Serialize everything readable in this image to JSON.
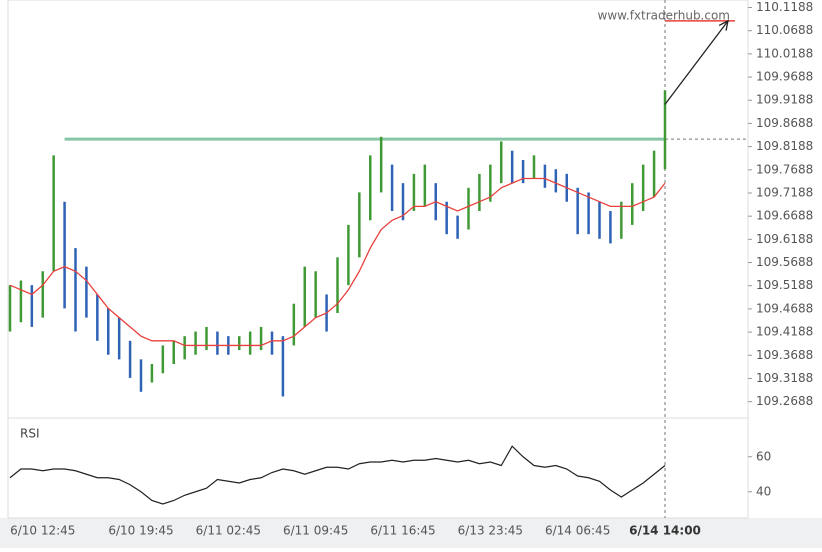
{
  "chart_data": [
    {
      "type": "hilo",
      "watermark": "www.fxtraderhub.com",
      "categories": [
        null,
        null,
        null,
        "6/10 12:45",
        null,
        null,
        null,
        null,
        null,
        null,
        null,
        null,
        "6/10 19:45",
        null,
        null,
        null,
        null,
        null,
        null,
        null,
        "6/11 02:45",
        null,
        null,
        null,
        null,
        null,
        null,
        null,
        "6/11 09:45",
        null,
        null,
        null,
        null,
        null,
        null,
        null,
        "6/11 16:45",
        null,
        null,
        null,
        null,
        null,
        null,
        null,
        "6/13 23:45",
        null,
        null,
        null,
        null,
        null,
        null,
        null,
        "6/14 06:45",
        null,
        null,
        null,
        null,
        null,
        null,
        null,
        "6/14 14:00"
      ],
      "high": [
        109.52,
        109.53,
        109.52,
        109.55,
        109.8,
        109.7,
        109.6,
        109.56,
        109.5,
        109.47,
        109.45,
        109.4,
        109.36,
        109.35,
        109.39,
        109.4,
        109.41,
        109.42,
        109.43,
        109.42,
        109.41,
        109.41,
        109.42,
        109.43,
        109.42,
        109.41,
        109.48,
        109.56,
        109.55,
        109.5,
        109.58,
        109.65,
        109.72,
        109.8,
        109.84,
        109.78,
        109.74,
        109.76,
        109.78,
        109.74,
        109.7,
        109.67,
        109.73,
        109.76,
        109.78,
        109.83,
        109.81,
        109.79,
        109.8,
        109.78,
        109.77,
        109.76,
        109.73,
        109.72,
        109.7,
        109.68,
        109.7,
        109.74,
        109.78,
        109.81,
        109.94
      ],
      "low": [
        109.42,
        109.44,
        109.43,
        109.45,
        109.55,
        109.47,
        109.42,
        109.45,
        109.4,
        109.37,
        109.36,
        109.32,
        109.29,
        109.31,
        109.33,
        109.35,
        109.36,
        109.37,
        109.38,
        109.37,
        109.37,
        109.38,
        109.37,
        109.38,
        109.37,
        109.28,
        109.39,
        109.43,
        109.45,
        109.42,
        109.46,
        109.52,
        109.58,
        109.66,
        109.72,
        109.68,
        109.66,
        109.68,
        109.69,
        109.66,
        109.63,
        109.62,
        109.64,
        109.68,
        109.7,
        109.74,
        109.74,
        109.74,
        109.75,
        109.73,
        109.72,
        109.7,
        109.63,
        109.63,
        109.62,
        109.61,
        109.62,
        109.65,
        109.68,
        109.71,
        109.77
      ],
      "moving_average": [
        109.52,
        109.51,
        109.5,
        109.52,
        109.55,
        109.56,
        109.55,
        109.53,
        109.5,
        109.47,
        109.45,
        109.43,
        109.41,
        109.4,
        109.4,
        109.4,
        109.39,
        109.39,
        109.39,
        109.39,
        109.39,
        109.39,
        109.39,
        109.39,
        109.4,
        109.4,
        109.41,
        109.43,
        109.45,
        109.46,
        109.48,
        109.51,
        109.55,
        109.6,
        109.64,
        109.66,
        109.67,
        109.69,
        109.69,
        109.7,
        109.69,
        109.68,
        109.69,
        109.7,
        109.71,
        109.73,
        109.74,
        109.75,
        109.75,
        109.75,
        109.74,
        109.73,
        109.72,
        109.71,
        109.7,
        109.69,
        109.69,
        109.69,
        109.7,
        109.71,
        109.74
      ],
      "up_color": "#3f9a35",
      "down_color": "#2e62b5",
      "ma_color": "#e8403c",
      "resistance": 109.835,
      "resistance_color": "#86c6a6",
      "target": 110.09,
      "target_color": "#e8403c",
      "arrow_start": 109.91,
      "ylim": [
        109.24,
        110.135
      ],
      "yticks": [
        110.1188,
        110.0688,
        110.0188,
        109.9688,
        109.9188,
        109.8688,
        109.8188,
        109.7688,
        109.7188,
        109.6688,
        109.6188,
        109.5688,
        109.5188,
        109.4688,
        109.4188,
        109.3688,
        109.3188,
        109.2688
      ]
    },
    {
      "type": "line",
      "title": "RSI",
      "values": [
        48,
        53,
        53,
        52,
        53,
        53,
        52,
        50,
        48,
        48,
        47,
        44,
        40,
        35,
        33,
        35,
        38,
        40,
        42,
        47,
        46,
        45,
        47,
        48,
        51,
        53,
        52,
        50,
        52,
        54,
        54,
        53,
        56,
        57,
        57,
        58,
        57,
        58,
        58,
        59,
        58,
        57,
        58,
        56,
        57,
        55,
        66,
        60,
        55,
        54,
        55,
        53,
        49,
        48,
        46,
        41,
        37,
        41,
        45,
        50,
        55
      ],
      "color": "#222222",
      "ylim": [
        25,
        81
      ],
      "yticks": [
        60,
        40
      ]
    }
  ]
}
